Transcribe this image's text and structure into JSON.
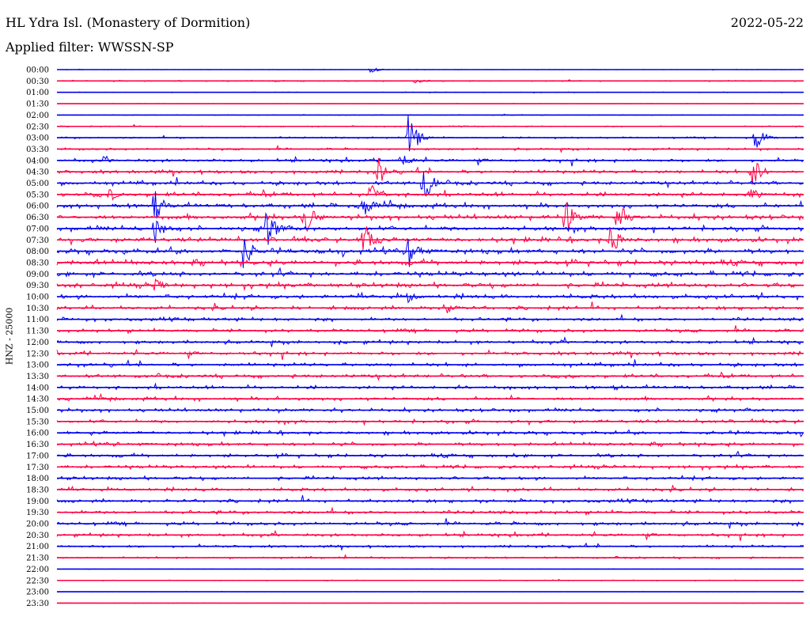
{
  "header": {
    "title": "HL Ydra Isl. (Monastery of Dormition)",
    "date": "2022-05-22",
    "filter": "Applied filter: WWSSN-SP"
  },
  "axis": {
    "ylabel": "HNZ - 25000"
  },
  "colors": {
    "odd": "#0000ee",
    "even": "#ff0044"
  },
  "chart_data": {
    "type": "line",
    "title": "HL Ydra Isl. (Monastery of Dormition)",
    "subtitle": "Applied filter: WWSSN-SP",
    "ylabel": "HNZ - 25000",
    "xlabel": "",
    "grid": false,
    "legend": "none",
    "categories": [
      "00:00",
      "00:30",
      "01:00",
      "01:30",
      "02:00",
      "02:30",
      "03:00",
      "03:30",
      "04:00",
      "04:30",
      "05:00",
      "05:30",
      "06:00",
      "06:30",
      "07:00",
      "07:30",
      "08:00",
      "08:30",
      "09:00",
      "09:30",
      "10:00",
      "10:30",
      "11:00",
      "11:30",
      "12:00",
      "12:30",
      "13:00",
      "13:30",
      "14:00",
      "14:30",
      "15:00",
      "15:30",
      "16:00",
      "16:30",
      "17:00",
      "17:30",
      "18:00",
      "18:30",
      "19:00",
      "19:30",
      "20:00",
      "20:30",
      "21:00",
      "21:30",
      "22:00",
      "22:30",
      "23:00",
      "23:30"
    ],
    "noise_level": [
      0.1,
      0.3,
      0.2,
      0.1,
      0.2,
      0.3,
      0.5,
      0.6,
      0.9,
      1.0,
      1.1,
      1.2,
      1.3,
      1.4,
      1.4,
      1.4,
      1.5,
      1.5,
      1.4,
      1.4,
      1.3,
      1.1,
      1.0,
      1.0,
      1.0,
      1.0,
      1.0,
      1.0,
      1.0,
      1.0,
      1.0,
      1.0,
      1.0,
      1.0,
      1.0,
      1.0,
      1.0,
      1.0,
      1.0,
      1.0,
      1.0,
      0.9,
      0.7,
      0.5,
      0.1,
      0.2,
      0.1,
      0.1
    ],
    "events": [
      {
        "trace": "00:00",
        "x": 0.42,
        "amp": 4
      },
      {
        "trace": "00:30",
        "x": 0.48,
        "amp": 4
      },
      {
        "trace": "03:00",
        "x": 0.47,
        "amp": 32
      },
      {
        "trace": "03:00",
        "x": 0.935,
        "amp": 18
      },
      {
        "trace": "04:00",
        "x": 0.06,
        "amp": 6
      },
      {
        "trace": "04:00",
        "x": 0.46,
        "amp": 14
      },
      {
        "trace": "04:30",
        "x": 0.43,
        "amp": 20
      },
      {
        "trace": "04:30",
        "x": 0.93,
        "amp": 26
      },
      {
        "trace": "05:00",
        "x": 0.49,
        "amp": 28
      },
      {
        "trace": "05:30",
        "x": 0.07,
        "amp": 10
      },
      {
        "trace": "05:30",
        "x": 0.42,
        "amp": 24
      },
      {
        "trace": "05:30",
        "x": 0.93,
        "amp": 12
      },
      {
        "trace": "06:00",
        "x": 0.13,
        "amp": 24
      },
      {
        "trace": "06:00",
        "x": 0.41,
        "amp": 20
      },
      {
        "trace": "06:30",
        "x": 0.33,
        "amp": 30
      },
      {
        "trace": "06:30",
        "x": 0.68,
        "amp": 28
      },
      {
        "trace": "06:30",
        "x": 0.75,
        "amp": 24
      },
      {
        "trace": "07:00",
        "x": 0.13,
        "amp": 22
      },
      {
        "trace": "07:00",
        "x": 0.28,
        "amp": 30
      },
      {
        "trace": "07:30",
        "x": 0.41,
        "amp": 30
      },
      {
        "trace": "07:30",
        "x": 0.74,
        "amp": 26
      },
      {
        "trace": "08:00",
        "x": 0.25,
        "amp": 26
      },
      {
        "trace": "08:00",
        "x": 0.47,
        "amp": 24
      },
      {
        "trace": "09:30",
        "x": 0.13,
        "amp": 10
      },
      {
        "trace": "10:00",
        "x": 0.47,
        "amp": 8
      },
      {
        "trace": "10:30",
        "x": 0.52,
        "amp": 12
      }
    ]
  }
}
